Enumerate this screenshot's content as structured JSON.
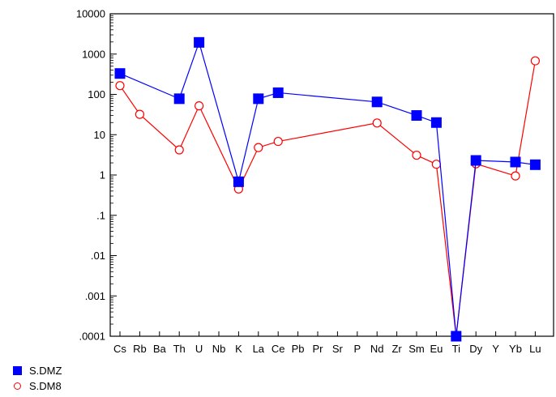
{
  "chart_data": {
    "type": "line",
    "title": "",
    "xlabel": "",
    "ylabel": "",
    "yscale": "log",
    "ylim": [
      0.0001,
      10000
    ],
    "y_ticks": [
      "10000",
      "1000",
      "100",
      "10",
      "1",
      ".1",
      ".01",
      ".001",
      ".0001"
    ],
    "categories": [
      "Cs",
      "Rb",
      "Ba",
      "Th",
      "U",
      "Nb",
      "K",
      "La",
      "Ce",
      "Pb",
      "Pr",
      "Sr",
      "P",
      "Nd",
      "Zr",
      "Sm",
      "Eu",
      "Ti",
      "Dy",
      "Y",
      "Yb",
      "Lu"
    ],
    "legend_position": "bottom-left",
    "grid": false,
    "series": [
      {
        "name": "S.DMZ",
        "color": "#0000ff",
        "marker": "filled-square",
        "points": [
          {
            "x": "Cs",
            "y": 330
          },
          {
            "x": "Th",
            "y": 78
          },
          {
            "x": "U",
            "y": 1950
          },
          {
            "x": "K",
            "y": 0.68
          },
          {
            "x": "La",
            "y": 78
          },
          {
            "x": "Ce",
            "y": 110
          },
          {
            "x": "Nd",
            "y": 65
          },
          {
            "x": "Sm",
            "y": 30
          },
          {
            "x": "Eu",
            "y": 20
          },
          {
            "x": "Ti",
            "y": 0.0001
          },
          {
            "x": "Dy",
            "y": 2.3
          },
          {
            "x": "Yb",
            "y": 2.1
          },
          {
            "x": "Lu",
            "y": 1.8
          }
        ]
      },
      {
        "name": "S.DM8",
        "color": "#ff0000",
        "marker": "open-circle",
        "points": [
          {
            "x": "Cs",
            "y": 165
          },
          {
            "x": "Rb",
            "y": 32
          },
          {
            "x": "Th",
            "y": 4.2
          },
          {
            "x": "U",
            "y": 52
          },
          {
            "x": "K",
            "y": 0.45
          },
          {
            "x": "La",
            "y": 4.8
          },
          {
            "x": "Ce",
            "y": 6.8
          },
          {
            "x": "Nd",
            "y": 19.5
          },
          {
            "x": "Sm",
            "y": 3.1
          },
          {
            "x": "Eu",
            "y": 1.85
          },
          {
            "x": "Ti",
            "y": 0.0001
          },
          {
            "x": "Dy",
            "y": 1.9
          },
          {
            "x": "Yb",
            "y": 0.95
          },
          {
            "x": "Lu",
            "y": 680
          }
        ]
      }
    ]
  }
}
